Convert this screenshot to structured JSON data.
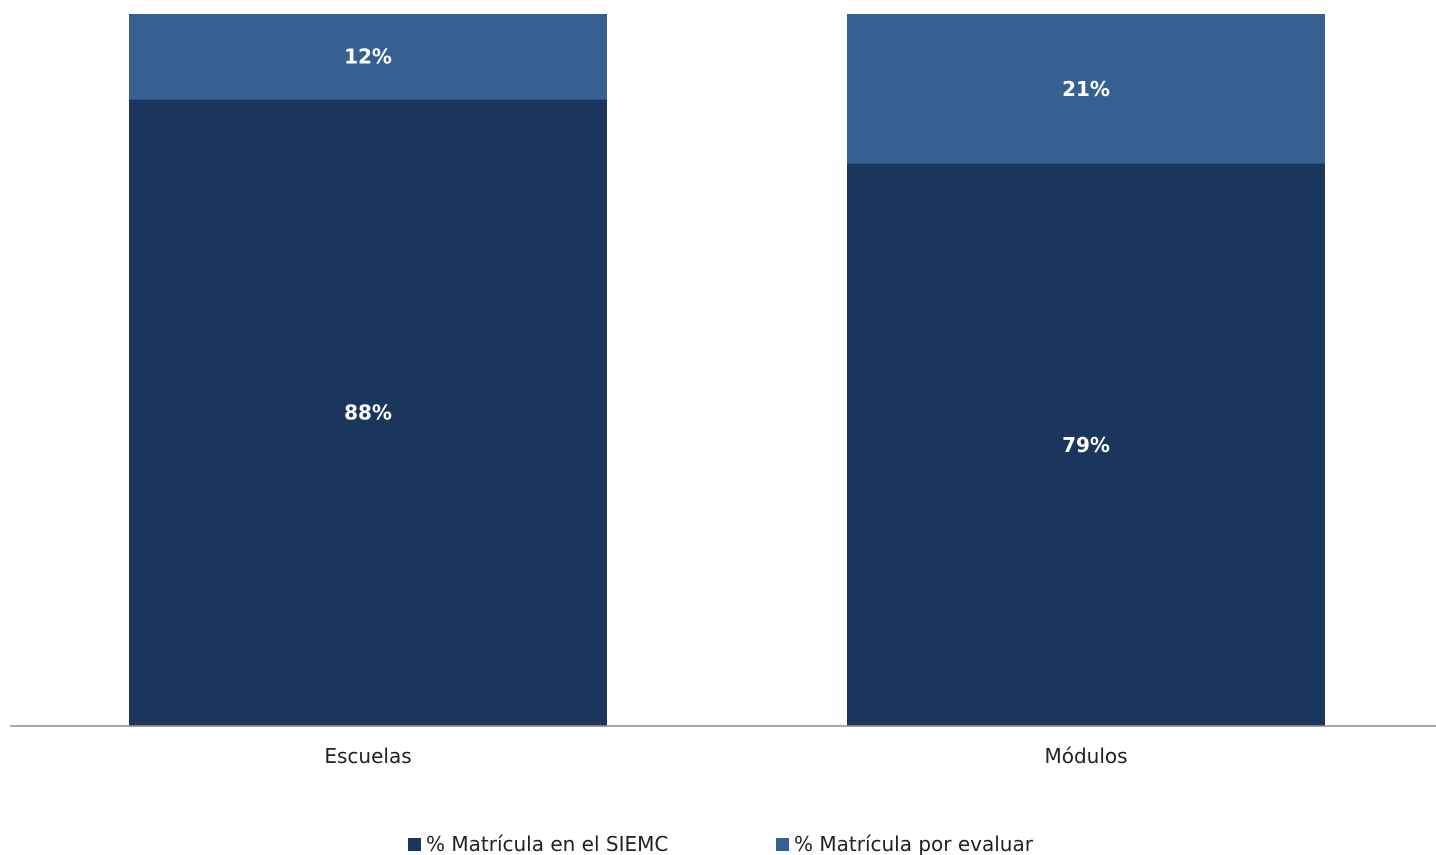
{
  "chart_data": {
    "type": "bar",
    "stacked": true,
    "categories": [
      "Escuelas",
      "Módulos"
    ],
    "series": [
      {
        "name": "% Matrícula en el SIEMC",
        "values": [
          88,
          79
        ],
        "labels": [
          "88%",
          "79%"
        ],
        "color": "#1a365d"
      },
      {
        "name": "% Matrícula por evaluar",
        "values": [
          12,
          21
        ],
        "labels": [
          "12%",
          "21%"
        ],
        "color": "#376092"
      }
    ],
    "ylim": [
      0,
      100
    ],
    "grid": false,
    "legend": "bottom"
  }
}
